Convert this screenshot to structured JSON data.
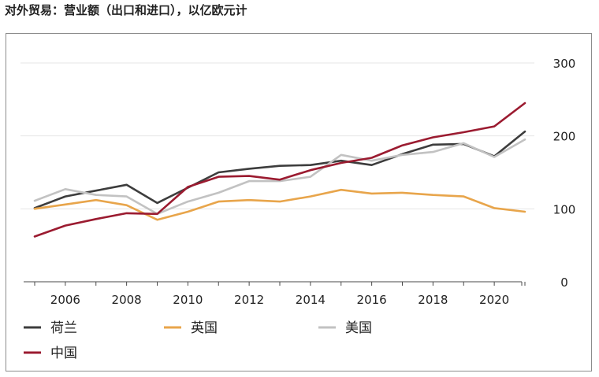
{
  "title": "对外贸易：营业额（出口和进口），以亿欧元计",
  "chart_data": {
    "type": "line",
    "title": "对外贸易：营业额（出口和进口），以亿欧元计",
    "x": [
      2005,
      2006,
      2007,
      2008,
      2009,
      2010,
      2011,
      2012,
      2013,
      2014,
      2015,
      2016,
      2017,
      2018,
      2019,
      2020,
      2021
    ],
    "xticks": [
      2006,
      2008,
      2010,
      2012,
      2014,
      2016,
      2018,
      2020
    ],
    "ylim": [
      0,
      300
    ],
    "yticks": [
      0,
      100,
      200,
      300
    ],
    "y_axis_side": "right",
    "grid": true,
    "legend_position": "bottom",
    "series": [
      {
        "name": "荷兰",
        "color": "#3d3d3d",
        "values": [
          101,
          117,
          125,
          133,
          108,
          129,
          150,
          155,
          159,
          160,
          166,
          160,
          175,
          188,
          189,
          172,
          206
        ]
      },
      {
        "name": "英国",
        "color": "#e8a54b",
        "values": [
          100,
          106,
          112,
          105,
          85,
          96,
          110,
          112,
          110,
          117,
          126,
          121,
          122,
          119,
          117,
          101,
          96
        ]
      },
      {
        "name": "美国",
        "color": "#c2c2c2",
        "values": [
          111,
          127,
          119,
          117,
          93,
          110,
          122,
          138,
          138,
          144,
          174,
          166,
          174,
          178,
          190,
          171,
          195
        ]
      },
      {
        "name": "中国",
        "color": "#9b1b30",
        "values": [
          62,
          77,
          86,
          94,
          93,
          130,
          144,
          145,
          140,
          153,
          163,
          170,
          187,
          198,
          205,
          213,
          245
        ]
      }
    ]
  }
}
